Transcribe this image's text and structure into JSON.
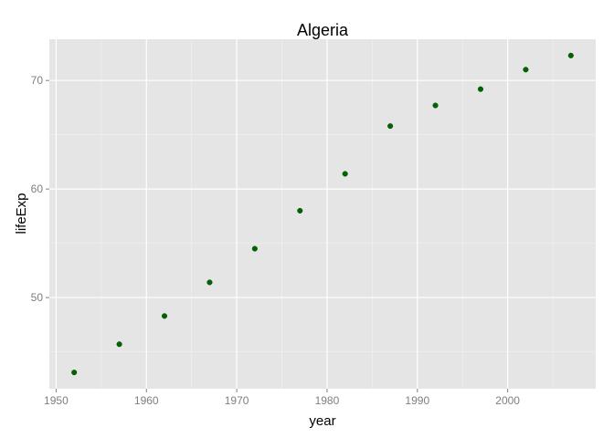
{
  "chart_data": {
    "type": "scatter",
    "title": "Algeria",
    "xlabel": "year",
    "ylabel": "lifeExp",
    "xlim": [
      1949.25,
      2009.75
    ],
    "ylim": [
      41.6,
      73.8
    ],
    "x_ticks": [
      1950,
      1960,
      1970,
      1980,
      1990,
      2000
    ],
    "y_ticks": [
      50,
      60,
      70
    ],
    "grid": true,
    "series": [
      {
        "x": [
          1952,
          1957,
          1962,
          1967,
          1972,
          1977,
          1982,
          1987,
          1992,
          1997,
          2002,
          2007
        ],
        "y": [
          43.1,
          45.7,
          48.3,
          51.4,
          54.5,
          58.0,
          61.4,
          65.8,
          67.7,
          69.2,
          71.0,
          72.3
        ]
      }
    ],
    "colors": {
      "panel_background": "#e5e5e5",
      "grid_major": "#ffffff",
      "grid_minor": "#f2f2f2",
      "point": "#006400"
    }
  }
}
